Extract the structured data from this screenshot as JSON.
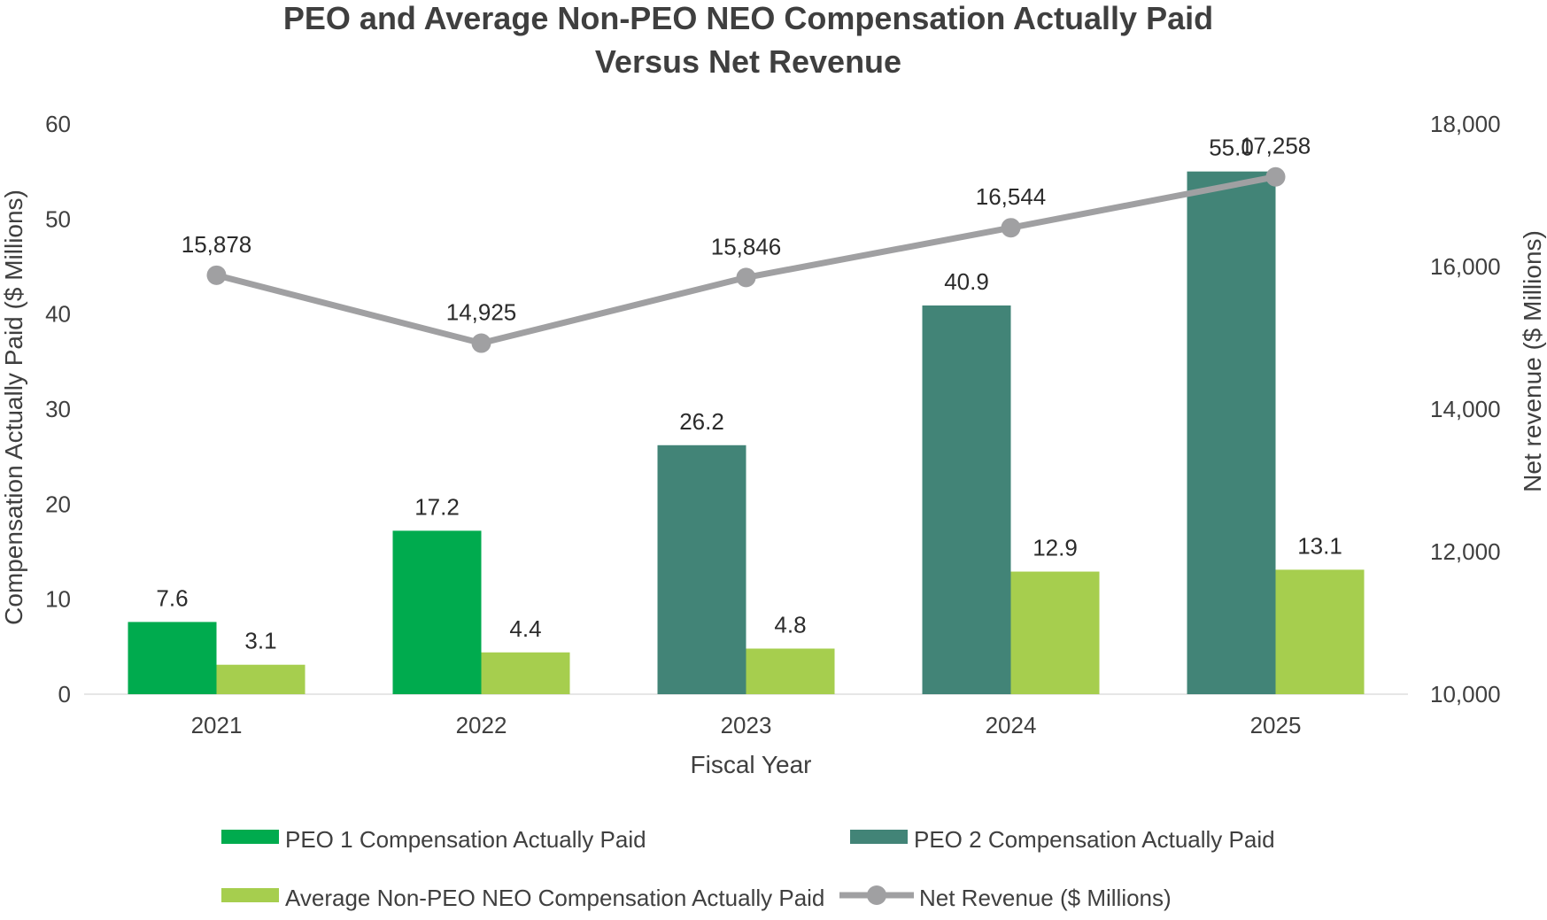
{
  "chart_data": {
    "type": "bar",
    "title_lines": [
      "PEO and Average Non-PEO NEO Compensation Actually Paid",
      "Versus Net Revenue"
    ],
    "xlabel": "Fiscal Year",
    "ylabel": "Compensation Actually Paid ($ Millions)",
    "y2label": "Net revenue ($ Millions)",
    "categories": [
      "2021",
      "2022",
      "2023",
      "2024",
      "2025"
    ],
    "ylim": [
      0,
      60
    ],
    "yticks": [
      "0",
      "10",
      "20",
      "30",
      "40",
      "50",
      "60"
    ],
    "y2lim": [
      10000,
      18000
    ],
    "y2ticks": [
      "10,000",
      "12,000",
      "14,000",
      "16,000",
      "18,000"
    ],
    "grid": false,
    "legend_position": "bottom",
    "series": [
      {
        "name": "PEO 1 Compensation Actually Paid",
        "kind": "bar",
        "slot": 0,
        "color": "#00ab4e",
        "values": [
          7.6,
          17.2,
          null,
          null,
          null
        ],
        "labels": [
          "7.6",
          "17.2",
          null,
          null,
          null
        ]
      },
      {
        "name": "PEO 2 Compensation Actually Paid",
        "kind": "bar",
        "slot": 0,
        "color": "#428477",
        "values": [
          null,
          null,
          26.2,
          40.9,
          55.0
        ],
        "labels": [
          null,
          null,
          "26.2",
          "40.9",
          "55.0"
        ]
      },
      {
        "name": "Average Non-PEO NEO Compensation Actually Paid",
        "kind": "bar",
        "slot": 1,
        "color": "#a6ce4e",
        "values": [
          3.1,
          4.4,
          4.8,
          12.9,
          13.1
        ],
        "labels": [
          "3.1",
          "4.4",
          "4.8",
          "12.9",
          "13.1"
        ]
      },
      {
        "name": "Net Revenue ($ Millions)",
        "kind": "line",
        "axis": "right",
        "color": "#a0a0a2",
        "values": [
          15878,
          14925,
          15846,
          16544,
          17258
        ],
        "labels": [
          "15,878",
          "14,925",
          "15,846",
          "16,544",
          "17,258"
        ]
      }
    ]
  }
}
